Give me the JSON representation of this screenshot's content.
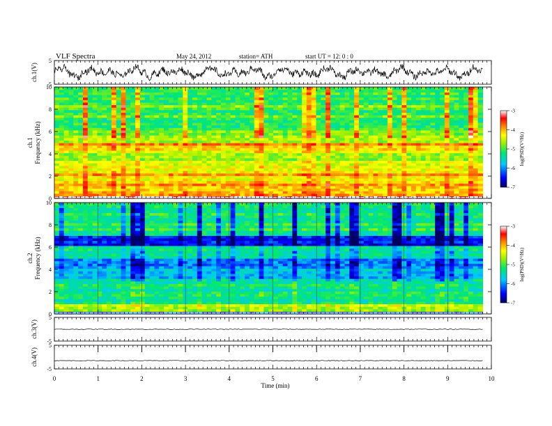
{
  "header": {
    "title": "VLF  Spectra",
    "date": "May 24, 2012",
    "station": "station= ATH",
    "start": "start  UT  =   12: 0  : 0"
  },
  "chart_data": [
    {
      "type": "line",
      "ylabel": "ch.1(V)",
      "ylim": [
        -5,
        5
      ],
      "yticks": [
        "5",
        "-5"
      ],
      "trace": "large-amplitude noisy waveform, roughly -3 to +3 V"
    },
    {
      "type": "heatmap",
      "ylabel_lines": [
        "ch.1",
        "Frequency  (kHz)"
      ],
      "ylim": [
        0,
        10
      ],
      "yticks": [
        "0",
        "2",
        "4",
        "6",
        "8",
        "10"
      ],
      "colorbar": {
        "label": "log(PSD)(V²/Hz)",
        "range": [
          -7,
          -3
        ],
        "ticks": [
          "-3",
          "-4",
          "-5",
          "-6",
          "-7"
        ]
      },
      "bands": [
        {
          "f0": 0.0,
          "f1": 0.25,
          "level": -3.3
        },
        {
          "f0": 0.25,
          "f1": 1.2,
          "level": -4.0
        },
        {
          "f0": 1.2,
          "f1": 2.2,
          "level": -4.1
        },
        {
          "f0": 2.2,
          "f1": 3.2,
          "level": -4.3
        },
        {
          "f0": 3.2,
          "f1": 4.4,
          "level": -4.6
        },
        {
          "f0": 4.4,
          "f1": 5.0,
          "level": -4.0
        },
        {
          "f0": 5.0,
          "f1": 6.4,
          "level": -4.8
        },
        {
          "f0": 6.4,
          "f1": 10.0,
          "level": -5.0
        }
      ]
    },
    {
      "type": "heatmap",
      "ylabel_lines": [
        "ch.2",
        "Frequency  (kHz)"
      ],
      "ylim": [
        0,
        10
      ],
      "yticks": [
        "0",
        "2",
        "4",
        "6",
        "8",
        "10"
      ],
      "colorbar": {
        "label": "log(PSD)(V²/Hz)",
        "range": [
          -7,
          -3
        ],
        "ticks": [
          "-3",
          "-4",
          "-5",
          "-6",
          "-7"
        ]
      },
      "bands": [
        {
          "f0": 0.0,
          "f1": 0.3,
          "level": -6.2
        },
        {
          "f0": 0.3,
          "f1": 1.0,
          "level": -4.6
        },
        {
          "f0": 1.0,
          "f1": 3.0,
          "level": -5.3
        },
        {
          "f0": 3.0,
          "f1": 4.0,
          "level": -5.6
        },
        {
          "f0": 4.0,
          "f1": 5.0,
          "level": -5.9
        },
        {
          "f0": 5.0,
          "f1": 6.2,
          "level": -5.4
        },
        {
          "f0": 6.2,
          "f1": 7.0,
          "level": -6.3
        },
        {
          "f0": 7.0,
          "f1": 10.0,
          "level": -5.2
        }
      ]
    },
    {
      "type": "line",
      "ylabel": "ch.3(V)",
      "ylim": [
        -5,
        5
      ],
      "yticks": [
        "5",
        "-5"
      ],
      "baseline": 0.0
    },
    {
      "type": "line",
      "ylabel": "ch.4(V)",
      "ylim": [
        -5,
        5
      ],
      "yticks": [
        "5",
        "-5"
      ],
      "baseline": -1.5
    }
  ],
  "xaxis": {
    "label": "Time  (min)",
    "xlim": [
      0,
      10
    ],
    "ticks": [
      "0",
      "1",
      "2",
      "3",
      "4",
      "5",
      "6",
      "7",
      "8",
      "9",
      "10"
    ],
    "data_end": 9.8
  }
}
